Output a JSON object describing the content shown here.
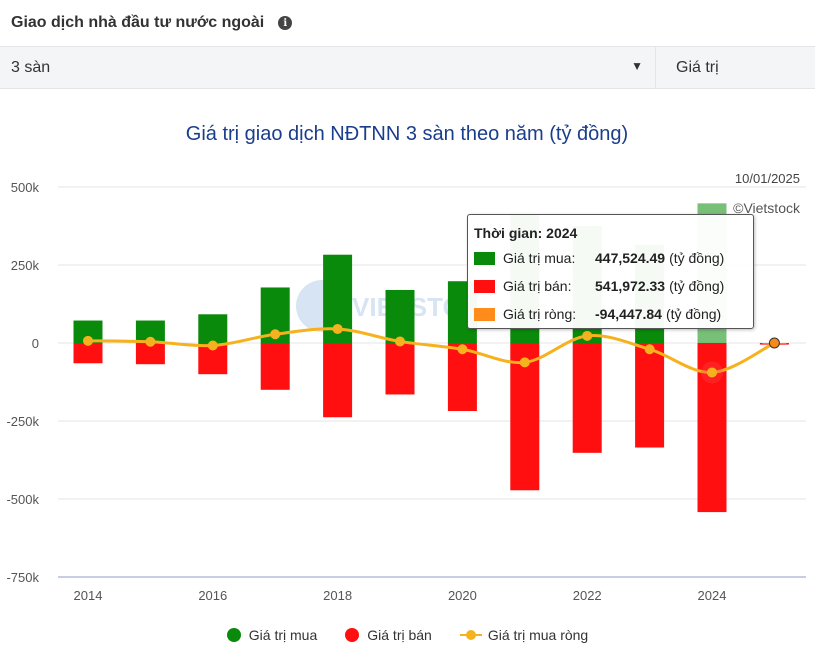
{
  "header": {
    "title": "Giao dịch nhà đầu tư nước ngoài",
    "info_icon": "info-icon"
  },
  "controls": {
    "exchange_value": "3 sàn",
    "arrow_glyph": "▼",
    "mode_label": "Giá trị"
  },
  "chart_data": {
    "type": "bar",
    "title": "Giá trị giao dịch NĐTNN 3 sàn theo năm (tỷ đồng)",
    "date_label": "10/01/2025",
    "credit": "©Vietstock",
    "watermark": "VIETSTOCK",
    "ylim": [
      -750000,
      500000
    ],
    "yticks": [
      {
        "value": 500000,
        "label": "500k"
      },
      {
        "value": 250000,
        "label": "250k"
      },
      {
        "value": 0,
        "label": "0"
      },
      {
        "value": -250000,
        "label": "-250k"
      },
      {
        "value": -500000,
        "label": "-500k"
      },
      {
        "value": -750000,
        "label": "-750k"
      }
    ],
    "years": [
      2014,
      2015,
      2016,
      2017,
      2018,
      2019,
      2020,
      2021,
      2022,
      2023,
      2024,
      2025
    ],
    "xtick_labels": [
      "2014",
      "2016",
      "2018",
      "2020",
      "2022",
      "2024"
    ],
    "xtick_years": [
      2014,
      2016,
      2018,
      2020,
      2022,
      2024
    ],
    "series": [
      {
        "name": "Giá trị mua",
        "color": "#0a8a0a",
        "values": [
          72000,
          72000,
          92000,
          178000,
          283000,
          170000,
          198000,
          410000,
          375000,
          315000,
          447524.49,
          0
        ]
      },
      {
        "name": "Giá trị bán",
        "color": "#ff0f0f",
        "values": [
          -65000,
          -68000,
          -100000,
          -150000,
          -238000,
          -165000,
          -218000,
          -472000,
          -352000,
          -335000,
          -541972.33,
          -5000
        ]
      },
      {
        "name": "Giá trị mua ròng",
        "color": "#f5b21e",
        "values": [
          7000,
          4000,
          -8000,
          28000,
          45000,
          5000,
          -20000,
          -62000,
          23000,
          -20000,
          -94447.84,
          0
        ]
      }
    ],
    "highlight_year": 2024
  },
  "tooltip": {
    "title": "Thời gian: 2024",
    "rows": [
      {
        "label": "Giá trị mua:",
        "value": "447,524.49",
        "unit": "(tỷ đồng)",
        "color": "#0a8a0a"
      },
      {
        "label": "Giá trị bán:",
        "value": "541,972.33",
        "unit": "(tỷ đồng)",
        "color": "#ff0f0f"
      },
      {
        "label": "Giá trị ròng:",
        "value": "-94,447.84",
        "unit": "(tỷ đồng)",
        "color": "#ff8c1a"
      }
    ]
  },
  "legend": [
    {
      "label": "Giá trị mua",
      "color": "#0a8a0a"
    },
    {
      "label": "Giá trị bán",
      "color": "#ff0f0f"
    },
    {
      "label": "Giá trị mua ròng",
      "color": "#f5b21e"
    }
  ]
}
